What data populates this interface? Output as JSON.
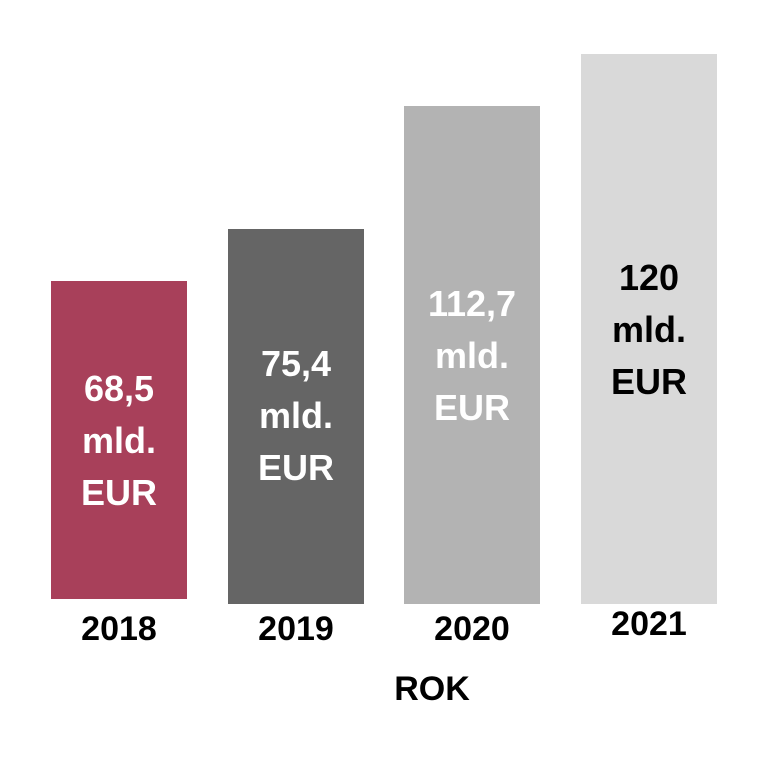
{
  "chart_data": {
    "type": "bar",
    "categories": [
      "2018",
      "2019",
      "2020",
      "2021"
    ],
    "values": [
      68.5,
      75.4,
      112.7,
      120
    ],
    "data_labels": [
      [
        "68,5",
        "mld.",
        "EUR"
      ],
      [
        "75,4",
        "mld.",
        "EUR"
      ],
      [
        "112,7",
        "mld.",
        "EUR"
      ],
      [
        "120",
        "mld.",
        "EUR"
      ]
    ],
    "bar_colors": [
      "#a8405a",
      "#656565",
      "#b3b3b3",
      "#d9d9d9"
    ],
    "label_colors": [
      "#ffffff",
      "#ffffff",
      "#ffffff",
      "#000000"
    ],
    "xlabel": "ROK",
    "ylabel": "",
    "title": "",
    "grid": false,
    "legend": false
  }
}
